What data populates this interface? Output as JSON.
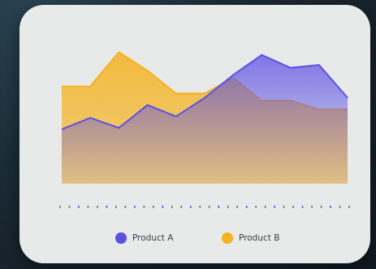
{
  "chart_data": {
    "type": "area",
    "categories": [
      "",
      "",
      "",
      "",
      "",
      "",
      "",
      "",
      "",
      "",
      "",
      "",
      "",
      "",
      "",
      "",
      "",
      "",
      "",
      "",
      "",
      "",
      "",
      "",
      "",
      "",
      "",
      "",
      "",
      "",
      "",
      ""
    ],
    "x": [
      0,
      1,
      2,
      3,
      4,
      5,
      6,
      7,
      8,
      9,
      10
    ],
    "series": [
      {
        "name": "Product A",
        "color": "#5b50e6",
        "values": [
          38,
          46,
          39,
          55,
          47,
          60,
          76,
          90,
          81,
          83,
          60
        ]
      },
      {
        "name": "Product B",
        "color": "#f5b31f",
        "values": [
          68,
          68,
          92,
          79,
          63,
          63,
          74,
          58,
          58,
          52,
          52
        ]
      }
    ],
    "ylim": [
      0,
      100
    ],
    "grid": false,
    "legend_position": "bottom-center"
  },
  "legend": {
    "items": [
      {
        "label": "Product A",
        "color": "#5b50e6"
      },
      {
        "label": "Product B",
        "color": "#f5b31f"
      }
    ]
  }
}
